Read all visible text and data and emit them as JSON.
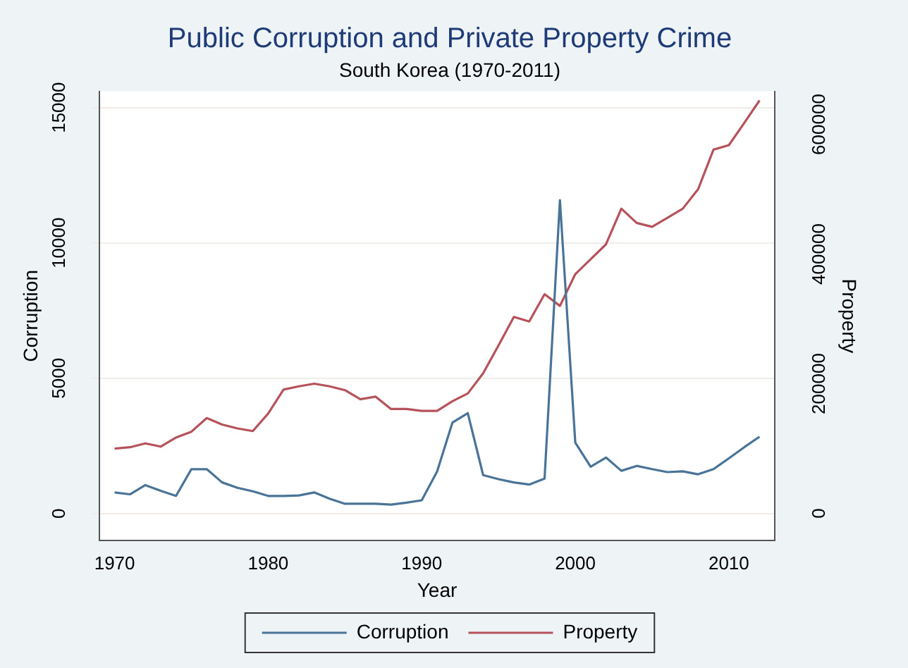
{
  "chart_data": {
    "type": "line",
    "title": "Public Corruption and Private Property Crime",
    "subtitle": "South Korea (1970-2011)",
    "xlabel": "Year",
    "ylabel": "Corruption",
    "y2label": "Property",
    "x": [
      1970,
      1971,
      1972,
      1973,
      1974,
      1975,
      1976,
      1977,
      1978,
      1979,
      1980,
      1981,
      1982,
      1983,
      1984,
      1985,
      1986,
      1987,
      1988,
      1989,
      1990,
      1991,
      1992,
      1993,
      1994,
      1995,
      1996,
      1997,
      1998,
      1999,
      2000,
      2001,
      2002,
      2003,
      2004,
      2005,
      2006,
      2007,
      2008,
      2009,
      2010,
      2011,
      2012
    ],
    "series": [
      {
        "name": "Corruption",
        "color": "#4a7497",
        "values": [
          780,
          710,
          1050,
          840,
          650,
          1640,
          1640,
          1150,
          950,
          820,
          650,
          650,
          670,
          780,
          550,
          360,
          360,
          360,
          330,
          400,
          490,
          1550,
          3360,
          3710,
          1420,
          1270,
          1150,
          1070,
          1290,
          11580,
          2620,
          1730,
          2070,
          1580,
          1760,
          1640,
          1530,
          1560,
          1450,
          1640,
          2040,
          2450,
          2840
        ]
      },
      {
        "name": "Property",
        "color": "#b5525a",
        "axis": "y2",
        "values": [
          100000,
          102000,
          108000,
          103000,
          117000,
          126000,
          147000,
          137000,
          131000,
          127000,
          154000,
          191000,
          196000,
          200000,
          196000,
          190000,
          176000,
          180000,
          161000,
          161000,
          158000,
          158000,
          173000,
          185000,
          216000,
          259000,
          303000,
          296000,
          338000,
          320000,
          369000,
          392000,
          415000,
          470000,
          448000,
          442000,
          456000,
          470000,
          500000,
          561000,
          568000,
          602000,
          637000
        ]
      }
    ],
    "xlim": [
      1969,
      2013
    ],
    "xticks": [
      1970,
      1980,
      1990,
      2000,
      2010
    ],
    "ylim": [
      -1000,
      15600
    ],
    "yticks": [
      0,
      5000,
      10000,
      15000
    ],
    "y2lim": [
      -42000,
      651000
    ],
    "y2ticks": [
      0,
      200000,
      400000,
      600000
    ],
    "grid": "y",
    "legend": "bottom",
    "marker": "none",
    "line_style": "solid"
  }
}
